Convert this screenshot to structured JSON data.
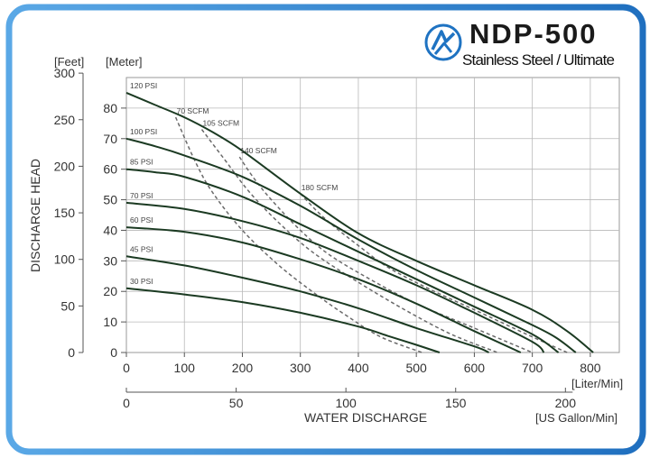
{
  "brand": {
    "title": "NDP-500",
    "subtitle": "Stainless Steel / Ultimate",
    "accent": "#1f73c2"
  },
  "chart_data": {
    "type": "line",
    "title": "NDP-500",
    "ylabel": "DISCHARGE HEAD",
    "xlabel": "WATER DISCHARGE",
    "y_unit_left": "[Feet]",
    "y_unit_right": "[Meter]",
    "x_unit_lpm": "[Liter/Min]",
    "x_unit_gpm": "[US Gallon/Min]",
    "xlim": [
      0,
      850
    ],
    "ylim": [
      0,
      90
    ],
    "x_ticks": [
      0,
      100,
      200,
      300,
      400,
      500,
      600,
      700,
      800
    ],
    "x_ticks_gpm": [
      0,
      50,
      100,
      150,
      200
    ],
    "y_ticks_meter": [
      0,
      10,
      20,
      30,
      40,
      50,
      60,
      70,
      80
    ],
    "y_ticks_feet": [
      0,
      50,
      100,
      150,
      200,
      250,
      300
    ],
    "grid": true,
    "line_color": "#1b3a22",
    "air_color": "#6a6a6a",
    "series": [
      {
        "name": "120 PSI",
        "x": [
          0,
          50,
          100,
          150,
          200,
          300,
          400,
          500,
          600,
          700,
          760,
          805
        ],
        "y": [
          85,
          81,
          77,
          72,
          66,
          52,
          39,
          30,
          22,
          14,
          7,
          0
        ]
      },
      {
        "name": "100 PSI",
        "x": [
          0,
          50,
          100,
          200,
          300,
          400,
          500,
          600,
          700,
          740,
          775
        ],
        "y": [
          70,
          67.5,
          64.5,
          57.5,
          48,
          37,
          27,
          18,
          9,
          5,
          0
        ]
      },
      {
        "name": "85 PSI",
        "x": [
          0,
          50,
          100,
          200,
          300,
          400,
          500,
          600,
          700,
          745
        ],
        "y": [
          60,
          59,
          57.5,
          51,
          42,
          33,
          24,
          15,
          6,
          0
        ]
      },
      {
        "name": "70 PSI",
        "x": [
          0,
          100,
          200,
          300,
          400,
          500,
          600,
          700,
          720
        ],
        "y": [
          49,
          47,
          43,
          37.5,
          30,
          22,
          13,
          3.5,
          0
        ]
      },
      {
        "name": "60 PSI",
        "x": [
          0,
          100,
          200,
          300,
          400,
          500,
          600,
          680
        ],
        "y": [
          41,
          39.5,
          36,
          30.5,
          24,
          16,
          7,
          0
        ]
      },
      {
        "name": "45 PSI",
        "x": [
          0,
          100,
          200,
          300,
          400,
          500,
          600,
          625
        ],
        "y": [
          31.5,
          28.5,
          24.5,
          20,
          14.5,
          8,
          2,
          0
        ]
      },
      {
        "name": "30 PSI",
        "x": [
          0,
          100,
          200,
          300,
          400,
          450,
          500,
          540
        ],
        "y": [
          21,
          19,
          16.5,
          13,
          8.5,
          5.5,
          2.5,
          0
        ]
      }
    ],
    "air_consumption": [
      {
        "name": "70 SCFM",
        "x": [
          85,
          120,
          150,
          200,
          260,
          320,
          380,
          440,
          510
        ],
        "y": [
          77,
          62,
          52,
          40,
          29,
          20,
          12,
          5,
          0
        ]
      },
      {
        "name": "105 SCFM",
        "x": [
          130,
          170,
          210,
          260,
          320,
          400,
          480,
          560,
          640
        ],
        "y": [
          73,
          63,
          53,
          43,
          33,
          23,
          14,
          6,
          0
        ]
      },
      {
        "name": "140 SCFM",
        "x": [
          195,
          220,
          250,
          300,
          350,
          420,
          500,
          600,
          700
        ],
        "y": [
          64,
          57,
          50,
          40,
          32,
          24,
          16,
          8,
          0
        ]
      },
      {
        "name": "180 SCFM",
        "x": [
          300,
          330,
          360,
          400,
          450,
          520,
          600,
          690,
          760
        ],
        "y": [
          52,
          46,
          41,
          35,
          28,
          21,
          14,
          6,
          0
        ]
      }
    ]
  }
}
